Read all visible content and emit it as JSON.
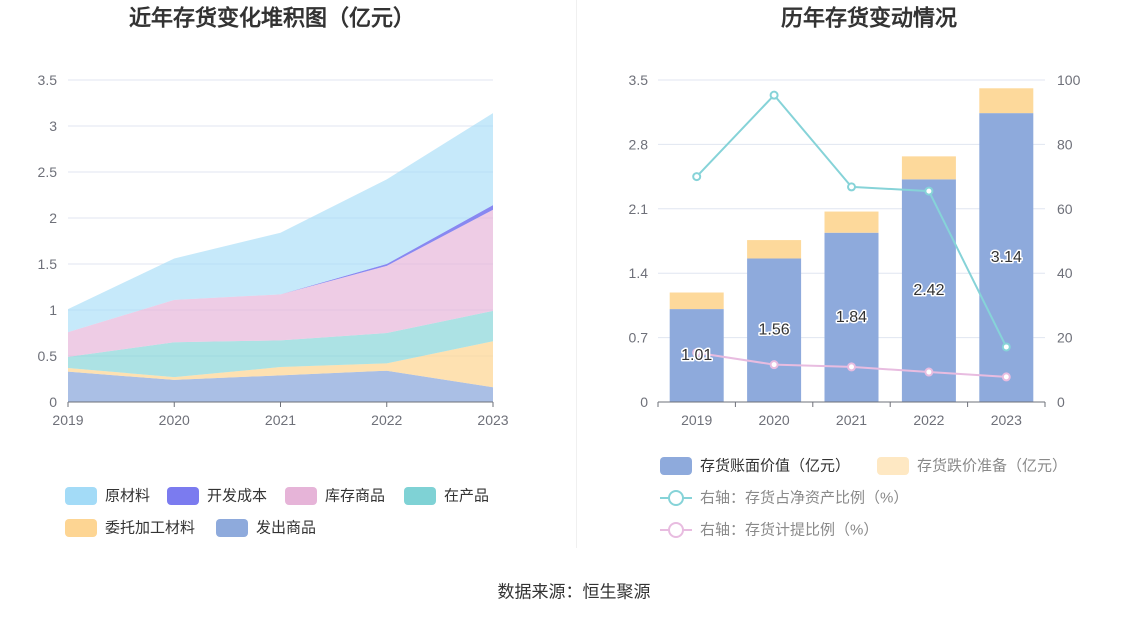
{
  "page": {
    "source": "数据来源：恒生聚源"
  },
  "chart_data": [
    {
      "type": "area",
      "stacked": true,
      "title": "近年存货变化堆积图（亿元）",
      "x": [
        "2019",
        "2020",
        "2021",
        "2022",
        "2023"
      ],
      "ylim": [
        0,
        3.5
      ],
      "yticks": [
        "0",
        "0.5",
        "1",
        "1.5",
        "2",
        "2.5",
        "3",
        "3.5"
      ],
      "grid": true,
      "legend_position": "bottom",
      "series": [
        {
          "name": "原材料",
          "color": "#a3dbf7",
          "values": [
            0.25,
            0.45,
            0.67,
            0.92,
            1.0
          ]
        },
        {
          "name": "开发成本",
          "color": "#7b7bef",
          "values": [
            0,
            0,
            0,
            0.02,
            0.05
          ]
        },
        {
          "name": "库存商品",
          "color": "#e6b4d8",
          "values": [
            0.27,
            0.46,
            0.5,
            0.73,
            1.1
          ]
        },
        {
          "name": "在产品",
          "color": "#7fd2d5",
          "values": [
            0.12,
            0.38,
            0.29,
            0.33,
            0.33
          ]
        },
        {
          "name": "委托加工材料",
          "color": "#fdd593",
          "values": [
            0.04,
            0.03,
            0.09,
            0.08,
            0.5
          ]
        },
        {
          "name": "发出商品",
          "color": "#8eaadc",
          "values": [
            0.33,
            0.24,
            0.29,
            0.34,
            0.16
          ]
        }
      ]
    },
    {
      "type": "bar",
      "title": "历年存货变动情况",
      "categories": [
        "2019",
        "2020",
        "2021",
        "2022",
        "2023"
      ],
      "ylim": [
        0,
        3.5
      ],
      "yticks": [
        "0",
        "0.7",
        "1.4",
        "2.1",
        "2.8",
        "3.5"
      ],
      "ylim_right": [
        0,
        100
      ],
      "yticks_right": [
        "0",
        "20",
        "40",
        "60",
        "80",
        "100"
      ],
      "grid": true,
      "legend_position": "bottom",
      "series": [
        {
          "name": "存货账面价值（亿元）",
          "type": "bar",
          "stack": true,
          "axis": "left",
          "color": "#8eaadc",
          "values": [
            1.01,
            1.56,
            1.84,
            2.42,
            3.14
          ],
          "labels": [
            "1.01",
            "1.56",
            "1.84",
            "2.42",
            "3.14"
          ]
        },
        {
          "name": "存货跌价准备（亿元）",
          "type": "bar",
          "stack": true,
          "axis": "left",
          "color": "#fdd99b",
          "values": [
            0.18,
            0.2,
            0.23,
            0.25,
            0.27
          ]
        },
        {
          "name": "右轴：存货占净资产比例（%）",
          "type": "line",
          "axis": "right",
          "color": "#86d3d8",
          "values": [
            70.0,
            95.3,
            66.8,
            65.5,
            17.1
          ]
        },
        {
          "name": "右轴：存货计提比例（%）",
          "type": "line",
          "axis": "right",
          "color": "#e8bce0",
          "values": [
            15.3,
            11.6,
            10.9,
            9.3,
            7.8
          ]
        }
      ]
    }
  ]
}
